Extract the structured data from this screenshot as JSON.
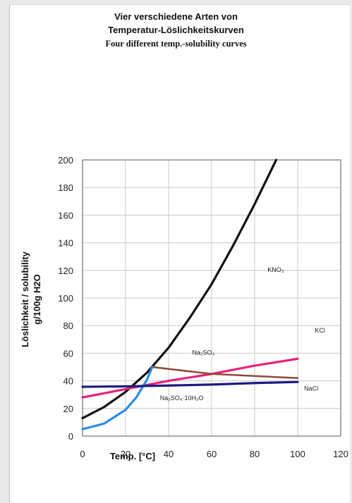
{
  "title": {
    "line1": "Vier verschiedene Arten von",
    "line2": "Temperatur-Löslichkeitskurven",
    "line3": "Four different temp.-solubility curves"
  },
  "chart_data": {
    "type": "line",
    "xlabel": "Temp. [°C]",
    "ylabel_line1": "Löslichkeit / solubility",
    "ylabel_line2": "g/100g H2O",
    "xlim": [
      0,
      120
    ],
    "ylim": [
      0,
      200
    ],
    "xticks": [
      "0",
      "20",
      "40",
      "60",
      "80",
      "100",
      "120"
    ],
    "yticks": [
      "0",
      "20",
      "40",
      "60",
      "80",
      "100",
      "120",
      "140",
      "160",
      "180",
      "200"
    ],
    "grid": true,
    "series": [
      {
        "name": "KNO₃",
        "color": "#111111",
        "x": [
          0,
          10,
          20,
          30,
          40,
          50,
          60,
          70,
          80,
          90
        ],
        "y": [
          13,
          21,
          32,
          46,
          64,
          86,
          110,
          138,
          168,
          200
        ]
      },
      {
        "name": "KCl",
        "color": "#e8207a",
        "x": [
          0,
          20,
          40,
          60,
          80,
          100
        ],
        "y": [
          28,
          34,
          40,
          45,
          51,
          56
        ]
      },
      {
        "name": "Na₂SO₄",
        "color": "#8b4a3a",
        "x": [
          32.4,
          60,
          100
        ],
        "y": [
          50,
          45,
          42
        ]
      },
      {
        "name": "Na₂SO₄·10H₂O",
        "color": "#2a8be8",
        "x": [
          0,
          10,
          20,
          25,
          30,
          32.4
        ],
        "y": [
          5,
          9,
          19,
          28,
          41,
          50
        ]
      },
      {
        "name": "NaCl",
        "color": "#1a1a80",
        "x": [
          0,
          20,
          40,
          60,
          80,
          100
        ],
        "y": [
          35.7,
          36,
          36.6,
          37.3,
          38.4,
          39.2
        ]
      }
    ],
    "labels": [
      "KNO₃",
      "KCl",
      "Na₂SO₄",
      "NaCl",
      "Na₂SO₄·10H₂O"
    ]
  }
}
